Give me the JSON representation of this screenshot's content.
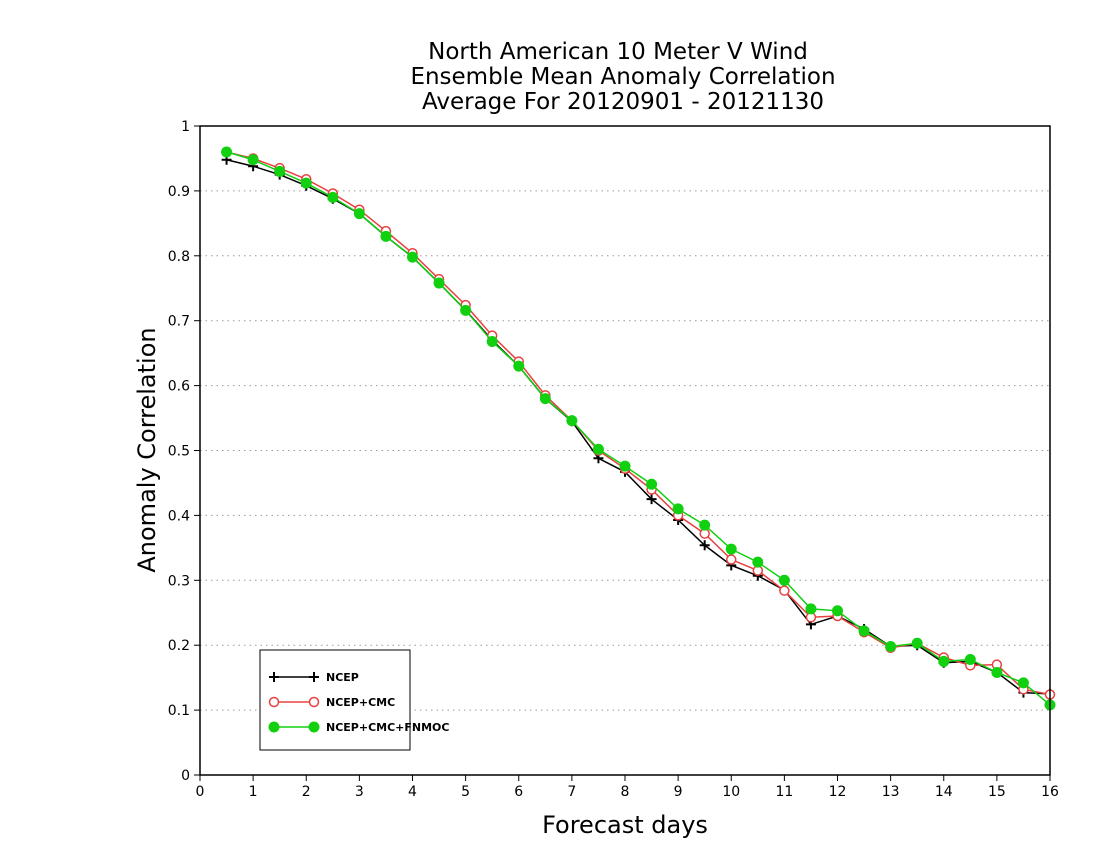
{
  "chart_data": {
    "type": "line",
    "title_lines": [
      "North American 10 Meter V Wind",
      "Ensemble Mean Anomaly Correlation",
      "Average For 20120901 - 20121130"
    ],
    "xlabel": "Forecast days",
    "ylabel": "Anomaly Correlation",
    "xlim": [
      0,
      16
    ],
    "ylim": [
      0,
      1
    ],
    "x_ticks": [
      0,
      1,
      2,
      3,
      4,
      5,
      6,
      7,
      8,
      9,
      10,
      11,
      12,
      13,
      14,
      15,
      16
    ],
    "y_ticks": [
      0,
      0.1,
      0.2,
      0.3,
      0.4,
      0.5,
      0.6,
      0.7,
      0.8,
      0.9,
      1
    ],
    "grid": "horizontal dotted",
    "legend_position": "bottom-left",
    "x": [
      0.5,
      1,
      1.5,
      2,
      2.5,
      3,
      3.5,
      4,
      4.5,
      5,
      5.5,
      6,
      6.5,
      7,
      7.5,
      8,
      8.5,
      9,
      9.5,
      10,
      10.5,
      11,
      11.5,
      12,
      12.5,
      13,
      13.5,
      14,
      14.5,
      15,
      15.5,
      16
    ],
    "series": [
      {
        "name": "NCEP",
        "color": "#000000",
        "marker": "plus",
        "values": [
          0.948,
          0.938,
          0.925,
          0.908,
          0.888,
          0.865,
          0.83,
          0.798,
          0.758,
          0.716,
          0.67,
          0.63,
          0.58,
          0.545,
          0.488,
          0.467,
          0.425,
          0.393,
          0.354,
          0.323,
          0.307,
          0.285,
          0.232,
          0.245,
          0.225,
          0.198,
          0.2,
          0.173,
          0.175,
          0.158,
          0.127,
          0.125
        ]
      },
      {
        "name": "NCEP+CMC",
        "color": "#e84040",
        "marker": "open-circle",
        "values": [
          0.96,
          0.95,
          0.935,
          0.918,
          0.896,
          0.871,
          0.838,
          0.804,
          0.764,
          0.724,
          0.677,
          0.637,
          0.585,
          0.546,
          0.5,
          0.472,
          0.44,
          0.4,
          0.372,
          0.332,
          0.315,
          0.284,
          0.243,
          0.245,
          0.22,
          0.196,
          0.203,
          0.181,
          0.169,
          0.17,
          0.132,
          0.124
        ]
      },
      {
        "name": "NCEP+CMC+FNMOC",
        "color": "#10d010",
        "marker": "filled-circle",
        "values": [
          0.96,
          0.948,
          0.93,
          0.912,
          0.89,
          0.865,
          0.83,
          0.798,
          0.758,
          0.716,
          0.668,
          0.63,
          0.58,
          0.546,
          0.502,
          0.476,
          0.448,
          0.41,
          0.385,
          0.348,
          0.328,
          0.3,
          0.256,
          0.253,
          0.222,
          0.198,
          0.203,
          0.175,
          0.178,
          0.158,
          0.142,
          0.108
        ]
      }
    ]
  }
}
